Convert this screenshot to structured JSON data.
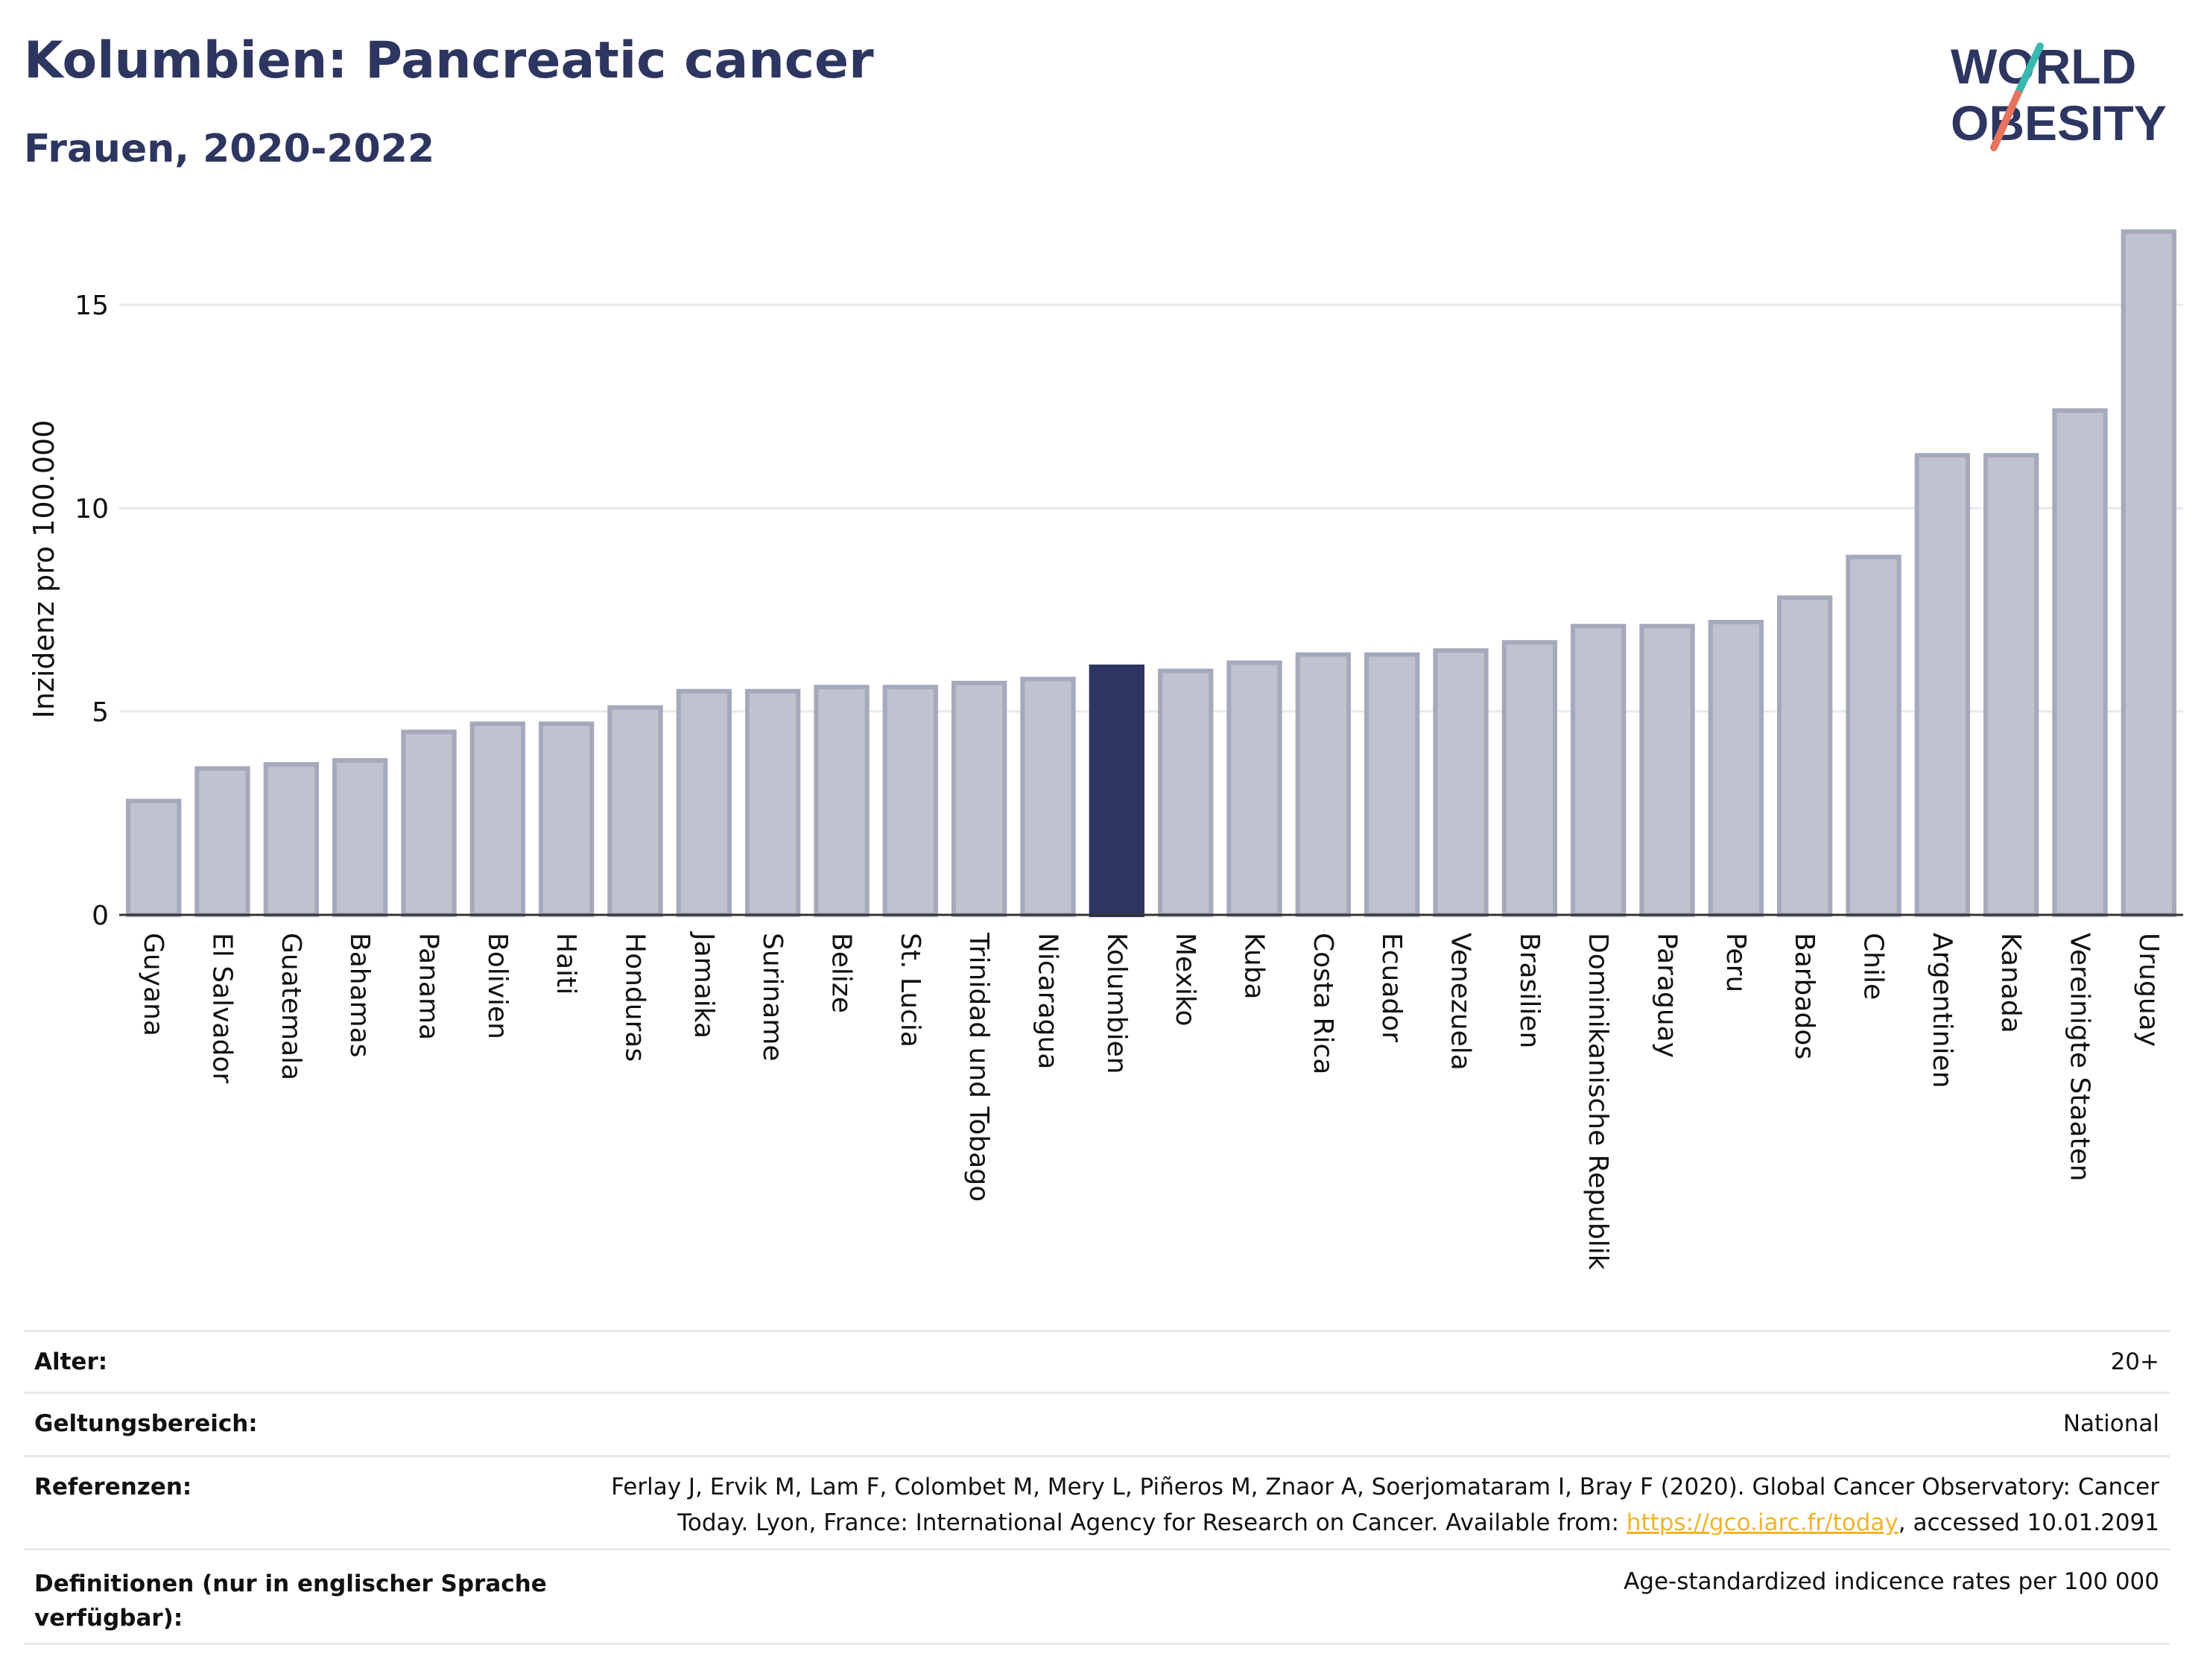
{
  "header": {
    "title": "Kolumbien: Pancreatic cancer",
    "subtitle": "Frauen, 2020-2022"
  },
  "logo": {
    "line1": "WORLD",
    "line2": "OBESITY",
    "slash_color_top": "#3ab8b0",
    "slash_color_bottom": "#e8735e",
    "text_color": "#2d3660"
  },
  "chart_data": {
    "type": "bar",
    "ylabel": "Inzidenz pro 100.000",
    "ylim": [
      0,
      17
    ],
    "yticks": [
      0,
      5,
      10,
      15
    ],
    "grid": true,
    "highlight": "Kolumbien",
    "colors": {
      "bar": "#c0c3cf",
      "bar_stroke": "#a4a9bb",
      "highlight": "#2d3660",
      "grid": "#e6e8ee"
    },
    "categories": [
      "Guyana",
      "El Salvador",
      "Guatemala",
      "Bahamas",
      "Panama",
      "Bolivien",
      "Haiti",
      "Honduras",
      "Jamaika",
      "Suriname",
      "Belize",
      "St. Lucia",
      "Trinidad und Tobago",
      "Nicaragua",
      "Kolumbien",
      "Mexiko",
      "Kuba",
      "Costa Rica",
      "Ecuador",
      "Venezuela",
      "Brasilien",
      "Dominikanische Republik",
      "Paraguay",
      "Peru",
      "Barbados",
      "Chile",
      "Argentinien",
      "Kanada",
      "Vereinigte Staaten",
      "Uruguay"
    ],
    "values": [
      2.8,
      3.6,
      3.7,
      3.8,
      4.5,
      4.7,
      4.7,
      5.1,
      5.5,
      5.5,
      5.6,
      5.6,
      5.7,
      5.8,
      6.1,
      6.0,
      6.2,
      6.4,
      6.4,
      6.5,
      6.7,
      7.1,
      7.1,
      7.2,
      7.8,
      8.8,
      11.3,
      11.3,
      12.4,
      16.8
    ]
  },
  "meta": {
    "age_label": "Alter:",
    "age_value": "20+",
    "scope_label": "Geltungsbereich:",
    "scope_value": "National",
    "refs_label": "Referenzen:",
    "refs_line1": "Ferlay J, Ervik M, Lam F, Colombet M, Mery L, Piñeros M, Znaor A, Soerjomataram I, Bray F (2020). Global Cancer Observatory: Cancer",
    "refs_line2_pre": "Today. Lyon, France: International Agency for Research on Cancer. Available from: ",
    "refs_link": "https://gco.iarc.fr/today",
    "refs_line2_post": ", accessed 10.01.2091",
    "defs_label_line1": "Definitionen (nur in englischer Sprache",
    "defs_label_line2": "verfügbar):",
    "defs_value": "Age-standardized indicence rates per 100 000"
  }
}
